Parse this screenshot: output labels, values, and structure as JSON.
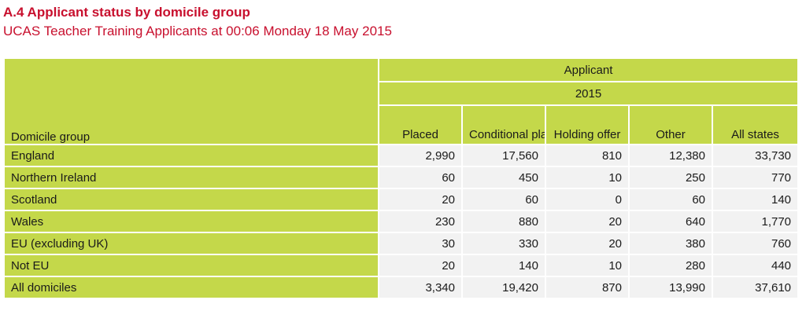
{
  "heading": {
    "title": "A.4 Applicant status by domicile group",
    "subtitle": "UCAS Teacher Training Applicants at 00:06  Monday 18 May 2015"
  },
  "table": {
    "row_header_label": "Domicile group",
    "group_label": "Applicant",
    "year_label": "2015",
    "columns": [
      "Placed",
      "Conditional placed",
      "Holding offer",
      "Other",
      "All states"
    ],
    "rows": [
      {
        "label": "England",
        "values": [
          "2,990",
          "17,560",
          "810",
          "12,380",
          "33,730"
        ]
      },
      {
        "label": "Northern Ireland",
        "values": [
          "60",
          "450",
          "10",
          "250",
          "770"
        ]
      },
      {
        "label": "Scotland",
        "values": [
          "20",
          "60",
          "0",
          "60",
          "140"
        ]
      },
      {
        "label": "Wales",
        "values": [
          "230",
          "880",
          "20",
          "640",
          "1,770"
        ]
      },
      {
        "label": "EU (excluding UK)",
        "values": [
          "30",
          "330",
          "20",
          "380",
          "760"
        ]
      },
      {
        "label": "Not EU",
        "values": [
          "20",
          "140",
          "10",
          "280",
          "440"
        ]
      },
      {
        "label": "All domiciles",
        "values": [
          "3,340",
          "19,420",
          "870",
          "13,990",
          "37,610"
        ]
      }
    ]
  },
  "colors": {
    "title": "#c8102e",
    "header_fill": "#c4d84a",
    "cell_fill": "#f2f2f2"
  }
}
